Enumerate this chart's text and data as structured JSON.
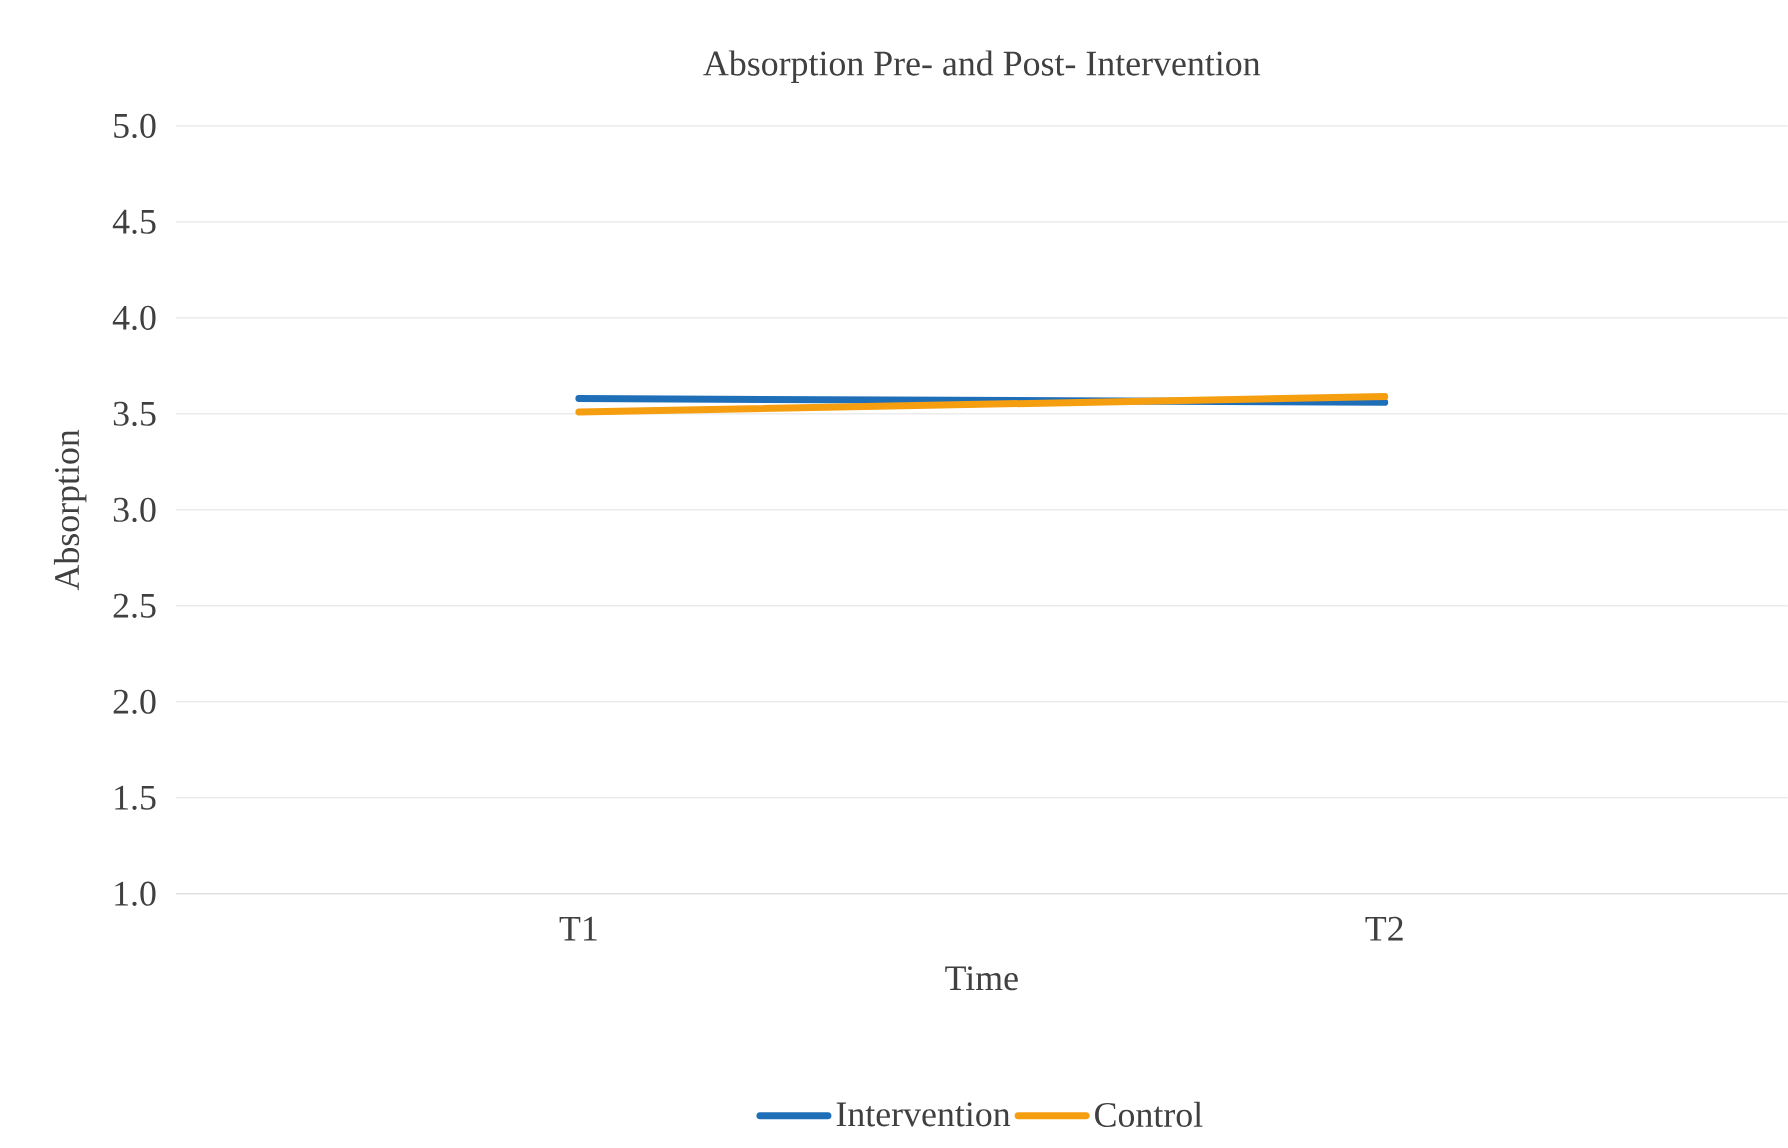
{
  "chart_data": {
    "type": "line",
    "title": "Absorption Pre- and Post- Intervention",
    "xlabel": "Time",
    "ylabel": "Absorption",
    "categories": [
      "T1",
      "T2"
    ],
    "series": [
      {
        "name": "Intervention",
        "color": "#1f6fb8",
        "values": [
          3.58,
          3.56
        ]
      },
      {
        "name": "Control",
        "color": "#f59e10",
        "values": [
          3.51,
          3.59
        ]
      }
    ],
    "ylim": [
      1.0,
      5.0
    ],
    "yticks": [
      {
        "value": 1.0,
        "label": "1.0"
      },
      {
        "value": 1.5,
        "label": "1.5"
      },
      {
        "value": 2.0,
        "label": "2.0"
      },
      {
        "value": 2.5,
        "label": "2.5"
      },
      {
        "value": 3.0,
        "label": "3.0"
      },
      {
        "value": 3.5,
        "label": "3.5"
      },
      {
        "value": 4.0,
        "label": "4.0"
      },
      {
        "value": 4.5,
        "label": "4.5"
      },
      {
        "value": 5.0,
        "label": "5.0"
      }
    ],
    "grid": "y",
    "legend": "bottom",
    "marker": "none",
    "line_style": "solid"
  }
}
